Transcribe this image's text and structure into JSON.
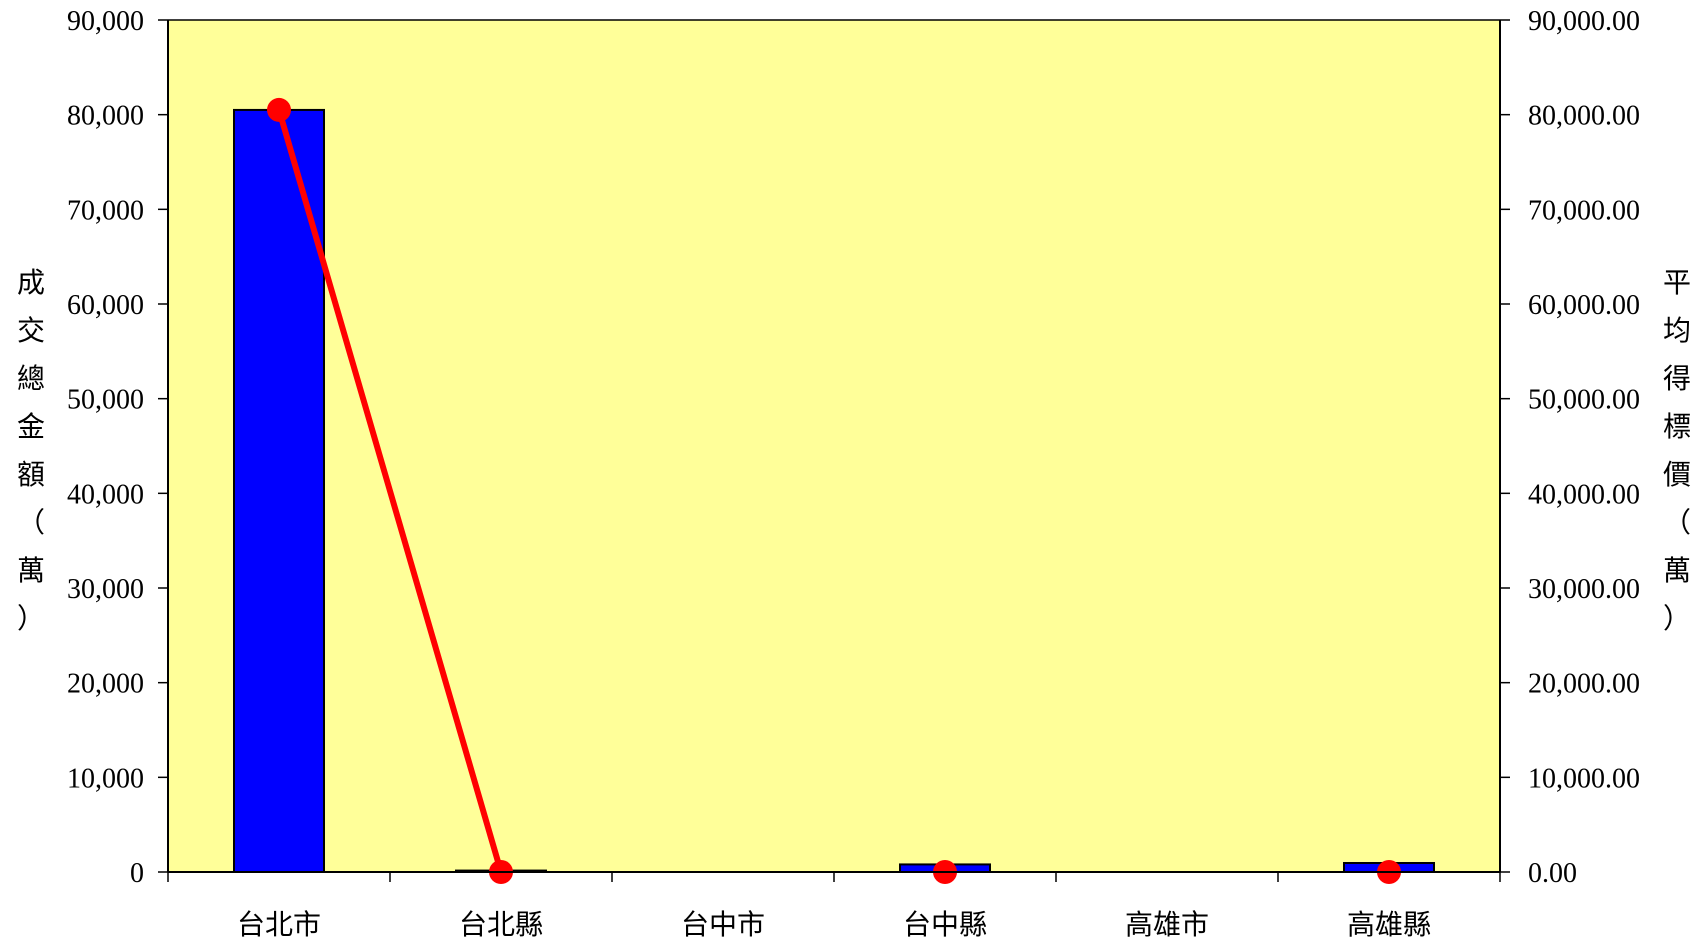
{
  "chart_data": {
    "type": "bar+line",
    "categories": [
      "台北市",
      "台北縣",
      "台中市",
      "台中縣",
      "高雄市",
      "高雄縣"
    ],
    "series": [
      {
        "axis": "left",
        "kind": "bar",
        "values": [
          80500,
          150,
          0,
          800,
          0,
          950
        ]
      },
      {
        "axis": "right",
        "kind": "line",
        "values": [
          80500.0,
          0.0,
          null,
          0.0,
          null,
          0.0
        ]
      }
    ],
    "ylabel_left": "成交總金額（萬）",
    "ylabel_right": "平均得標價（萬）",
    "ylim_left": [
      0,
      90000
    ],
    "ylim_right": [
      0,
      90000
    ],
    "yticks_left": [
      "0",
      "10,000",
      "20,000",
      "30,000",
      "40,000",
      "50,000",
      "60,000",
      "70,000",
      "80,000",
      "90,000"
    ],
    "yticks_right": [
      "0.00",
      "10,000.00",
      "20,000.00",
      "30,000.00",
      "40,000.00",
      "50,000.00",
      "60,000.00",
      "70,000.00",
      "80,000.00",
      "90,000.00"
    ],
    "grid": false,
    "legend": "none",
    "colors": {
      "plot_background": "#ffff99",
      "bar": "#0000ff",
      "line": "#ff0000",
      "marker": "#ff0000"
    }
  }
}
